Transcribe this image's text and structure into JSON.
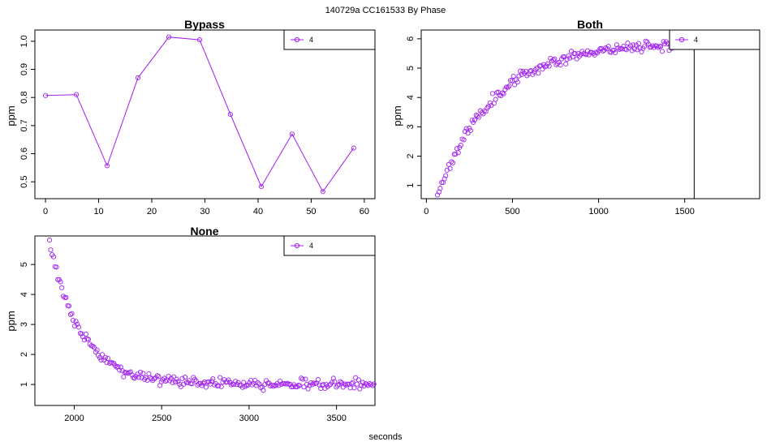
{
  "figure": {
    "suptitle": "140729a    CC161533   By Phase",
    "xlabel": "seconds",
    "series_color": "#a020f0"
  },
  "chart_data": [
    {
      "type": "line",
      "title": "Bypass",
      "ylabel": "ppm",
      "xlabel": "",
      "xlim": [
        -2,
        62
      ],
      "ylim": [
        0.44,
        1.04
      ],
      "xticks": [
        0,
        10,
        20,
        30,
        40,
        50,
        60
      ],
      "yticks": [
        0.5,
        0.6,
        0.7,
        0.8,
        0.9,
        1.0
      ],
      "ytick_labels": [
        "0.5",
        "0.6",
        "0.7",
        "0.8",
        "0.9",
        "1.0"
      ],
      "legend": "top-right",
      "series": [
        {
          "name": "4",
          "x": [
            0,
            5.8,
            11.6,
            17.4,
            23.2,
            29.0,
            34.8,
            40.6,
            46.4,
            52.2,
            58.0
          ],
          "y": [
            0.807,
            0.81,
            0.557,
            0.87,
            1.015,
            1.005,
            0.74,
            0.483,
            0.67,
            0.465,
            0.62
          ]
        }
      ]
    },
    {
      "type": "scatter",
      "title": "Both",
      "ylabel": "ppm",
      "xlabel": "",
      "xlim": [
        -30,
        1935
      ],
      "ylim": [
        0.55,
        6.3
      ],
      "xticks": [
        0,
        500,
        1000,
        1500
      ],
      "yticks": [
        1,
        2,
        3,
        4,
        5,
        6
      ],
      "ytick_labels": [
        "1",
        "2",
        "3",
        "4",
        "5",
        "6"
      ],
      "legend": "top-right",
      "vline_x": 1555,
      "model": {
        "start": 65,
        "end": 1690,
        "step": 8,
        "a": 5.9,
        "b": 5.2,
        "tau": 330,
        "noise": 0.09,
        "seed": 11
      },
      "series": [
        {
          "name": "4"
        }
      ]
    },
    {
      "type": "scatter",
      "title": "None",
      "ylabel": "ppm",
      "xlabel": "",
      "xlim": [
        1775,
        3720
      ],
      "ylim": [
        0.3,
        5.95
      ],
      "xticks": [
        2000,
        2500,
        3000,
        3500
      ],
      "yticks": [
        1,
        2,
        3,
        4,
        5
      ],
      "ytick_labels": [
        "1",
        "2",
        "3",
        "4",
        "5"
      ],
      "legend": "top-right",
      "model": {
        "start": 1858,
        "end": 3720,
        "step": 8,
        "a": 1.0,
        "b": 4.7,
        "tau": 185,
        "noise": 0.08,
        "seed": 29
      },
      "series": [
        {
          "name": "4"
        }
      ]
    }
  ]
}
